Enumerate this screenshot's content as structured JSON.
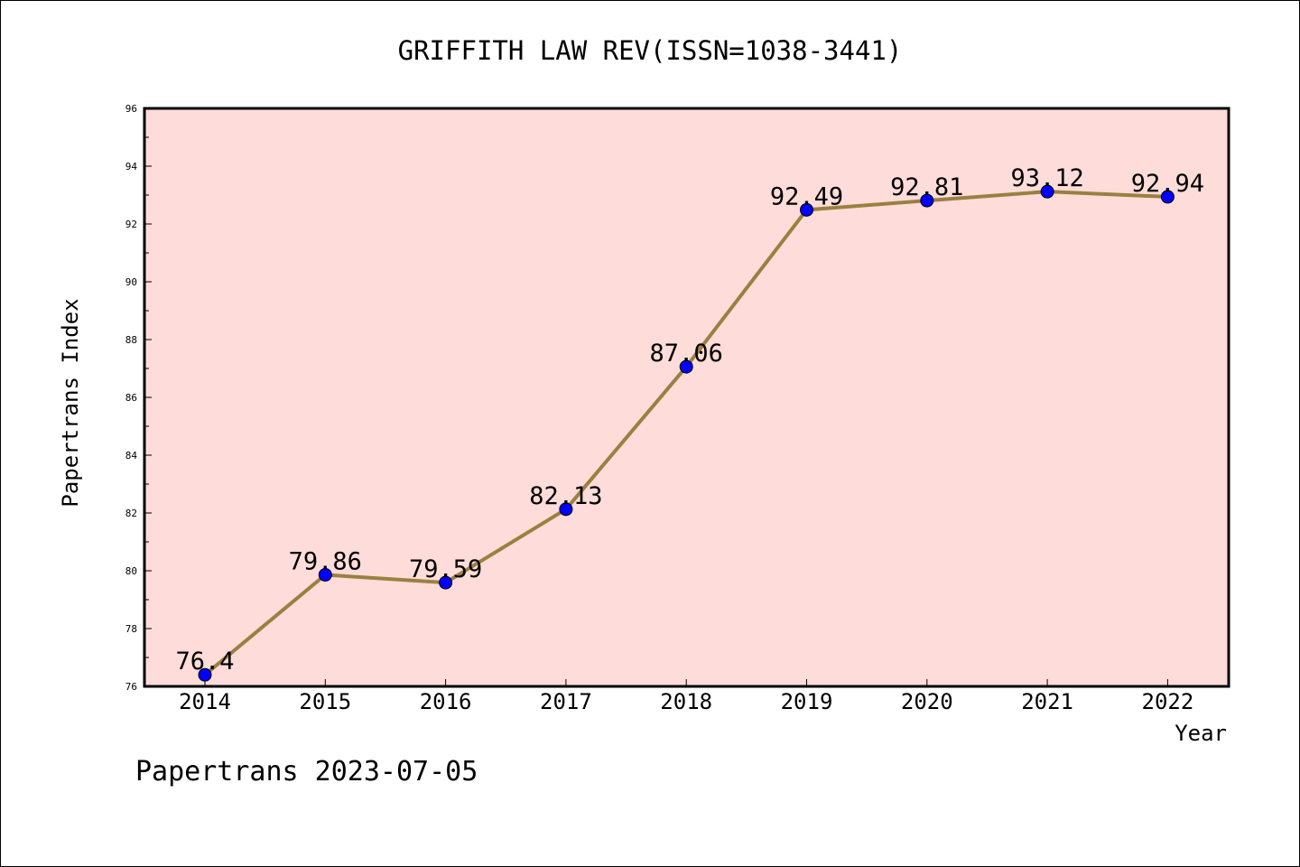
{
  "chart_data": {
    "type": "line",
    "title": "GRIFFITH LAW REV(ISSN=1038-3441)",
    "xlabel": "Year",
    "ylabel": "Papertrans Index",
    "x": [
      "2014",
      "2015",
      "2016",
      "2017",
      "2018",
      "2019",
      "2020",
      "2021",
      "2022"
    ],
    "series": [
      {
        "values": [
          76.4,
          79.86,
          79.59,
          82.13,
          87.06,
          92.49,
          92.81,
          93.12,
          92.94
        ],
        "labels": [
          "76.4",
          "79.86",
          "79.59",
          "82.13",
          "87.06",
          "92.49",
          "92.81",
          "93.12",
          "92.94"
        ],
        "line_color": "#9a8040",
        "marker_color": "#0000ff"
      }
    ],
    "ylim": [
      76,
      96
    ],
    "yticks": [
      "76",
      "78",
      "80",
      "82",
      "84",
      "86",
      "88",
      "90",
      "92",
      "94",
      "96"
    ],
    "plot_background": "#fddcd9",
    "grid": false
  },
  "footer": {
    "credit": "Papertrans 2023-07-05"
  }
}
